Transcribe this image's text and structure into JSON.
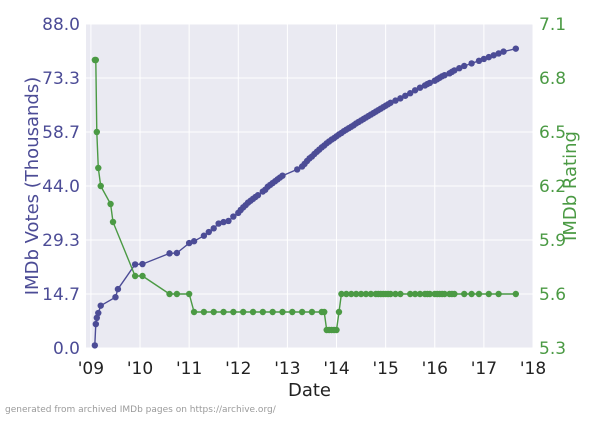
{
  "chart_data": {
    "type": "line",
    "xlabel": "Date",
    "ylabel": "IMDb Votes (Thousands)",
    "y2label": "IMDb Rating",
    "x_ticks": [
      "'09",
      "'10",
      "'11",
      "'12",
      "'13",
      "'14",
      "'15",
      "'16",
      "'17",
      "'18"
    ],
    "xlim": [
      2008.9,
      2018.0
    ],
    "ylim": [
      0,
      88
    ],
    "y_ticks": [
      "0.0",
      "14.7",
      "29.3",
      "44.0",
      "58.7",
      "73.3",
      "88.0"
    ],
    "y2lim": [
      5.3,
      7.1
    ],
    "y2_ticks": [
      "5.3",
      "5.6",
      "5.9",
      "6.2",
      "6.5",
      "6.8",
      "7.1"
    ],
    "grid": true,
    "colors": {
      "background": "#eaeaf2",
      "grid": "#ffffff",
      "votes": "#4c4c96",
      "rating": "#4b9a44",
      "votes_axis": "#4c4c96",
      "rating_axis": "#4b9a44"
    },
    "series": [
      {
        "axis": "left",
        "x": [
          2009.08,
          2009.1,
          2009.12,
          2009.15,
          2009.2,
          2009.5,
          2009.55,
          2009.9,
          2010.05,
          2010.6,
          2010.75,
          2011.0,
          2011.1,
          2011.3,
          2011.4,
          2011.5,
          2011.6,
          2011.7,
          2011.8,
          2011.9,
          2012.0,
          2012.05,
          2012.1,
          2012.15,
          2012.2,
          2012.25,
          2012.3,
          2012.35,
          2012.4,
          2012.5,
          2012.55,
          2012.6,
          2012.65,
          2012.7,
          2012.75,
          2012.8,
          2012.85,
          2012.9,
          2013.2,
          2013.3,
          2013.35,
          2013.4,
          2013.45,
          2013.5,
          2013.55,
          2013.6,
          2013.65,
          2013.7,
          2013.75,
          2013.8,
          2013.85,
          2013.9,
          2013.95,
          2014.0,
          2014.05,
          2014.1,
          2014.15,
          2014.2,
          2014.25,
          2014.3,
          2014.35,
          2014.4,
          2014.45,
          2014.5,
          2014.55,
          2014.6,
          2014.65,
          2014.7,
          2014.75,
          2014.8,
          2014.85,
          2014.9,
          2014.95,
          2015.0,
          2015.05,
          2015.1,
          2015.2,
          2015.3,
          2015.4,
          2015.5,
          2015.6,
          2015.7,
          2015.8,
          2015.85,
          2015.9,
          2016.0,
          2016.05,
          2016.1,
          2016.15,
          2016.2,
          2016.3,
          2016.35,
          2016.4,
          2016.5,
          2016.6,
          2016.75,
          2016.9,
          2017.0,
          2017.1,
          2017.2,
          2017.3,
          2017.4,
          2017.65
        ],
        "y": [
          0.7,
          6.5,
          8.2,
          9.5,
          11.5,
          13.8,
          16.0,
          22.7,
          22.8,
          25.7,
          25.8,
          28.5,
          29.0,
          30.5,
          31.5,
          32.5,
          33.8,
          34.2,
          34.5,
          35.7,
          36.7,
          37.5,
          38.2,
          38.8,
          39.5,
          40.0,
          40.5,
          41.0,
          41.5,
          42.5,
          43.0,
          43.8,
          44.3,
          44.8,
          45.3,
          45.8,
          46.3,
          46.8,
          48.5,
          49.3,
          50.0,
          50.8,
          51.5,
          52.0,
          52.7,
          53.3,
          53.9,
          54.5,
          55.0,
          55.6,
          56.1,
          56.6,
          57.0,
          57.5,
          58.0,
          58.4,
          58.9,
          59.3,
          59.7,
          60.1,
          60.5,
          61.0,
          61.4,
          61.8,
          62.2,
          62.6,
          63.0,
          63.4,
          63.8,
          64.2,
          64.6,
          65.0,
          65.4,
          65.8,
          66.2,
          66.6,
          67.2,
          67.8,
          68.5,
          69.2,
          70.0,
          70.7,
          71.3,
          71.7,
          72.0,
          72.6,
          73.0,
          73.4,
          73.8,
          74.1,
          74.6,
          75.0,
          75.4,
          76.0,
          76.6,
          77.3,
          78.0,
          78.5,
          79.0,
          79.5,
          80.0,
          80.5,
          81.3
        ]
      },
      {
        "axis": "right",
        "x": [
          2009.08,
          2009.1,
          2009.12,
          2009.15,
          2009.2,
          2009.4,
          2009.45,
          2009.9,
          2010.05,
          2010.6,
          2010.75,
          2011.0,
          2011.1,
          2011.3,
          2011.5,
          2011.7,
          2011.9,
          2012.1,
          2012.3,
          2012.5,
          2012.7,
          2012.9,
          2013.1,
          2013.3,
          2013.5,
          2013.7,
          2013.75,
          2013.8,
          2013.85,
          2013.9,
          2013.95,
          2014.0,
          2014.05,
          2014.1,
          2014.2,
          2014.3,
          2014.4,
          2014.5,
          2014.6,
          2014.7,
          2014.8,
          2014.85,
          2014.9,
          2014.95,
          2015.0,
          2015.05,
          2015.1,
          2015.2,
          2015.3,
          2015.5,
          2015.6,
          2015.7,
          2015.8,
          2015.85,
          2015.9,
          2016.0,
          2016.05,
          2016.1,
          2016.15,
          2016.2,
          2016.3,
          2016.35,
          2016.4,
          2016.6,
          2016.75,
          2016.9,
          2017.1,
          2017.3,
          2017.65
        ],
        "y": [
          6.9,
          6.9,
          6.5,
          6.3,
          6.2,
          6.1,
          6.0,
          5.7,
          5.7,
          5.6,
          5.6,
          5.6,
          5.5,
          5.5,
          5.5,
          5.5,
          5.5,
          5.5,
          5.5,
          5.5,
          5.5,
          5.5,
          5.5,
          5.5,
          5.5,
          5.5,
          5.5,
          5.4,
          5.4,
          5.4,
          5.4,
          5.4,
          5.5,
          5.6,
          5.6,
          5.6,
          5.6,
          5.6,
          5.6,
          5.6,
          5.6,
          5.6,
          5.6,
          5.6,
          5.6,
          5.6,
          5.6,
          5.6,
          5.6,
          5.6,
          5.6,
          5.6,
          5.6,
          5.6,
          5.6,
          5.6,
          5.6,
          5.6,
          5.6,
          5.6,
          5.6,
          5.6,
          5.6,
          5.6,
          5.6,
          5.6,
          5.6,
          5.6,
          5.6
        ]
      }
    ]
  },
  "footer_note": "generated from archived IMDb pages on https://archive.org/"
}
